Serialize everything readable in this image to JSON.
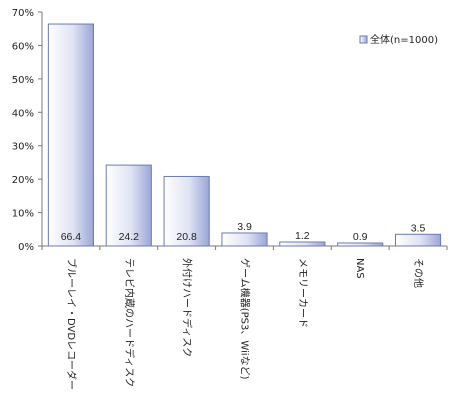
{
  "chart_data": {
    "type": "bar",
    "categories": [
      "ブルーレイ・DVDレコーダー",
      "テレビ内蔵のハードディスク",
      "外付けハードディスク",
      "ゲーム機器(PS3、Wiiなど)",
      "メモリーカード",
      "NAS",
      "その他"
    ],
    "series": [
      {
        "name": "全体(n=1000)",
        "values": [
          66.4,
          24.2,
          20.8,
          3.9,
          1.2,
          0.9,
          3.5
        ]
      }
    ],
    "data_labels": [
      "66.4",
      "24.2",
      "20.8",
      "3.9",
      "1.2",
      "0.9",
      "3.5"
    ],
    "y_ticks": [
      0,
      10,
      20,
      30,
      40,
      50,
      60,
      70
    ],
    "y_tick_labels": [
      "0%",
      "10%",
      "20%",
      "30%",
      "40%",
      "50%",
      "60%",
      "70%"
    ],
    "ylim": [
      0,
      70
    ],
    "grid": false,
    "legend_position": "top-right",
    "colors": {
      "bar_light": "#ffffff",
      "bar_dark": "#9aa6d6",
      "bar_stroke": "#6c7ab4",
      "axis": "#7a7a7a"
    }
  }
}
